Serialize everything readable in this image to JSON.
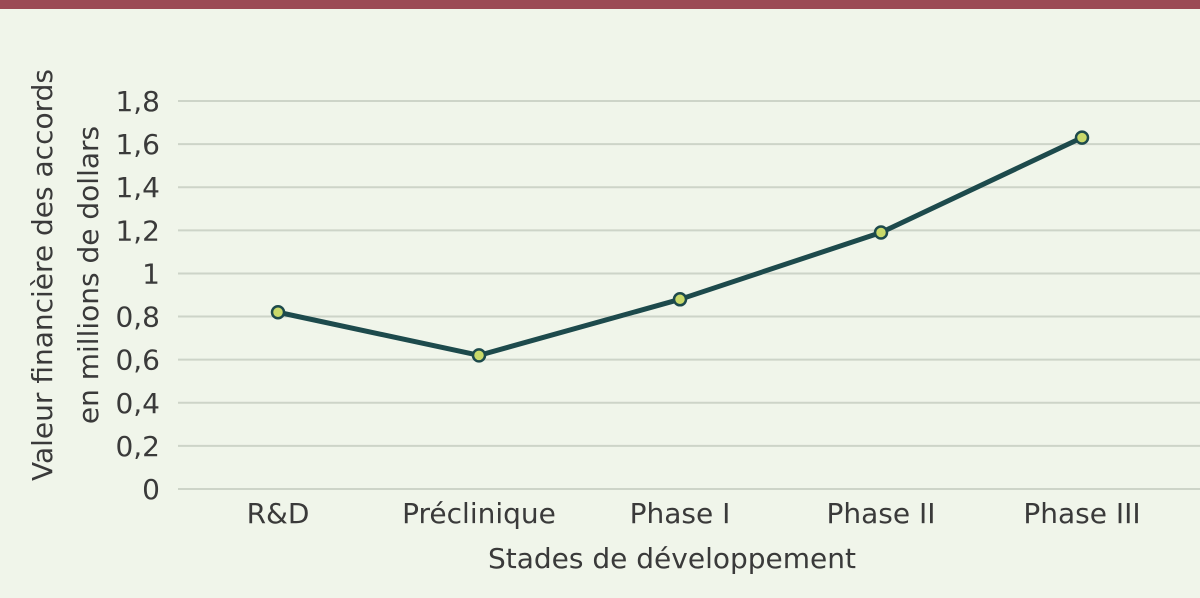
{
  "colors": {
    "background": "#f0f5ea",
    "top_bar": "#9b4a55",
    "line": "#1d4a4c",
    "marker_fill": "#c9d96a",
    "grid": "#cdd4c8",
    "text": "#3a3a3a"
  },
  "chart_data": {
    "type": "line",
    "title": "",
    "xlabel": "Stades de développement",
    "ylabel_lines": [
      "Valeur financière des accords",
      "en millions de dollars"
    ],
    "categories": [
      "R&D",
      "Préclinique",
      "Phase I",
      "Phase II",
      "Phase III"
    ],
    "series": [
      {
        "values": [
          0.82,
          0.62,
          0.88,
          1.19,
          1.63
        ]
      }
    ],
    "ylim": [
      0,
      1.8
    ],
    "yticks": [
      0,
      0.2,
      0.4,
      0.6,
      0.8,
      1,
      1.2,
      1.4,
      1.6,
      1.8
    ],
    "ytick_labels": [
      "0",
      "0,2",
      "0,4",
      "0,6",
      "0,8",
      "1",
      "1,2",
      "1,4",
      "1,6",
      "1,8"
    ],
    "grid": true,
    "legend": "none"
  }
}
